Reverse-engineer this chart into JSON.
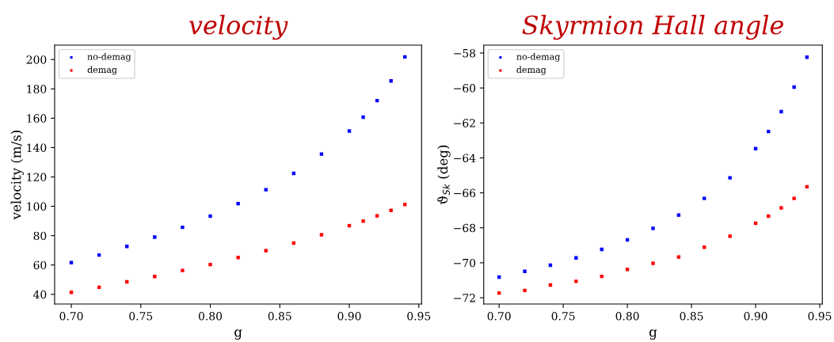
{
  "chart_data": [
    {
      "type": "scatter",
      "title": "velocity",
      "xlabel": "g",
      "ylabel": "velocity (m/s)",
      "x": [
        0.7,
        0.72,
        0.74,
        0.76,
        0.78,
        0.8,
        0.82,
        0.84,
        0.86,
        0.88,
        0.9,
        0.91,
        0.92,
        0.93,
        0.94
      ],
      "series": [
        {
          "name": "no-demag",
          "color": "#0000ff",
          "values": [
            61.6,
            66.8,
            72.7,
            79.0,
            85.7,
            93.3,
            101.8,
            111.3,
            122.4,
            135.6,
            151.3,
            160.7,
            172.0,
            185.4,
            201.8
          ]
        },
        {
          "name": "demag",
          "color": "#ff0000",
          "values": [
            41.4,
            44.8,
            48.5,
            52.2,
            56.3,
            60.3,
            65.1,
            69.8,
            74.9,
            80.6,
            86.8,
            89.9,
            93.5,
            97.2,
            101.2
          ]
        }
      ],
      "xlim": [
        0.688,
        0.952
      ],
      "xticks": [
        {
          "value": 0.7,
          "label": "0.70"
        },
        {
          "value": 0.75,
          "label": "0.75"
        },
        {
          "value": 0.8,
          "label": "0.80"
        },
        {
          "value": 0.85,
          "label": "0.85"
        },
        {
          "value": 0.9,
          "label": "0.90"
        },
        {
          "value": 0.95,
          "label": "0.95"
        }
      ],
      "ylim": [
        33.4,
        209.8
      ],
      "yticks": [
        40,
        60,
        80,
        100,
        120,
        140,
        160,
        180,
        200
      ],
      "marker": "square",
      "legend": "top left",
      "grid": false
    },
    {
      "type": "scatter",
      "title": "Skyrmion Hall angle",
      "xlabel": "g",
      "ylabel": "ϑ$_{Sk}$ (deg)",
      "x": [
        0.7,
        0.72,
        0.74,
        0.76,
        0.78,
        0.8,
        0.82,
        0.84,
        0.86,
        0.88,
        0.9,
        0.91,
        0.92,
        0.93,
        0.94
      ],
      "series": [
        {
          "name": "no-demag",
          "color": "#0000ff",
          "values": [
            -70.82,
            -70.49,
            -70.14,
            -69.72,
            -69.23,
            -68.69,
            -68.03,
            -67.27,
            -66.32,
            -65.14,
            -63.47,
            -62.49,
            -61.35,
            -59.95,
            -58.24
          ]
        },
        {
          "name": "demag",
          "color": "#ff0000",
          "values": [
            -71.73,
            -71.58,
            -71.27,
            -71.06,
            -70.78,
            -70.38,
            -70.03,
            -69.67,
            -69.11,
            -68.48,
            -67.74,
            -67.33,
            -66.86,
            -66.32,
            -65.65
          ]
        }
      ],
      "xlim": [
        0.688,
        0.952
      ],
      "xticks": [
        {
          "value": 0.7,
          "label": "0.70"
        },
        {
          "value": 0.75,
          "label": "0.75"
        },
        {
          "value": 0.8,
          "label": "0.80"
        },
        {
          "value": 0.85,
          "label": "0.85"
        },
        {
          "value": 0.9,
          "label": "0.90"
        },
        {
          "value": 0.95,
          "label": "0.95"
        }
      ],
      "ylim": [
        -72.36,
        -57.55
      ],
      "yticks": [
        -72,
        -70,
        -68,
        -66,
        -64,
        -62,
        -60,
        -58
      ],
      "marker": "square",
      "legend": "top left",
      "grid": false
    }
  ]
}
